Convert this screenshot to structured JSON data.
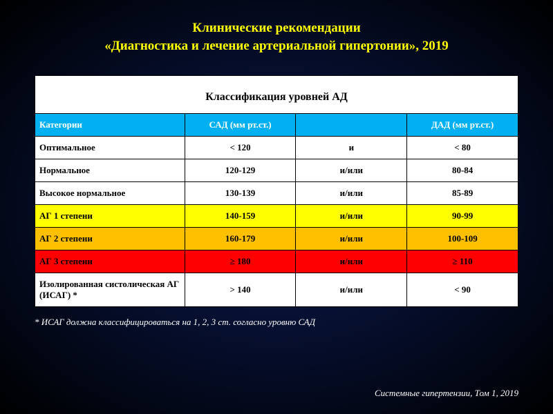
{
  "title_line1": "Клинические рекомендации",
  "title_line2": "«Диагностика и лечение артериальной гипертонии», 2019",
  "table": {
    "title": "Классификация уровней АД",
    "columns": [
      "Категории",
      "САД (мм рт.ст.)",
      "",
      "ДАД (мм рт.ст.)"
    ],
    "rows": [
      {
        "bg": "#ffffff",
        "cells": [
          "Оптимальное",
          "< 120",
          "и",
          "< 80"
        ]
      },
      {
        "bg": "#ffffff",
        "cells": [
          "Нормальное",
          "120-129",
          "и/или",
          "80-84"
        ]
      },
      {
        "bg": "#ffffff",
        "cells": [
          "Высокое нормальное",
          "130-139",
          "и/или",
          "85-89"
        ]
      },
      {
        "bg": "#ffff00",
        "cells": [
          "АГ 1 степени",
          "140-159",
          "и/или",
          "90-99"
        ]
      },
      {
        "bg": "#ffc000",
        "cells": [
          "АГ 2 степени",
          "160-179",
          "и/или",
          "100-109"
        ]
      },
      {
        "bg": "#ff0000",
        "cells": [
          "АГ 3 степени",
          "≥ 180",
          "и/или",
          "≥ 110"
        ]
      },
      {
        "bg": "#ffffff",
        "cells": [
          "Изолированная систолическая АГ (ИСАГ) *",
          "> 140",
          "и/или",
          "< 90"
        ]
      }
    ]
  },
  "footnote": "* ИСАГ должна классифицироваться на 1, 2, 3 ст. согласно уровню САД",
  "citation": "Системные гипертензии, Том 1, 2019",
  "colors": {
    "header_bg": "#00b0f0",
    "title_color": "#ffff00"
  }
}
